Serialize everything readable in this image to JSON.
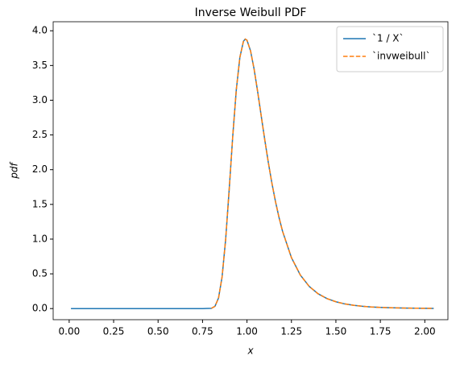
{
  "chart_data": {
    "type": "line",
    "title": "Inverse Weibull PDF",
    "xlabel": "x",
    "ylabel": "pdf",
    "x": [
      0.01,
      0.1,
      0.2,
      0.3,
      0.4,
      0.5,
      0.6,
      0.7,
      0.75,
      0.8,
      0.82,
      0.84,
      0.86,
      0.88,
      0.9,
      0.92,
      0.94,
      0.96,
      0.98,
      0.99,
      1.0,
      1.02,
      1.04,
      1.06,
      1.08,
      1.1,
      1.12,
      1.14,
      1.16,
      1.18,
      1.2,
      1.25,
      1.3,
      1.35,
      1.4,
      1.45,
      1.5,
      1.55,
      1.6,
      1.65,
      1.7,
      1.75,
      1.8,
      1.85,
      1.9,
      1.95,
      2.0,
      2.05
    ],
    "series": [
      {
        "name": "`1 / X`",
        "color": "#1f77b4",
        "dashed": false,
        "values": [
          0,
          0,
          0,
          0,
          0,
          0,
          0,
          0,
          0,
          0.004,
          0.033,
          0.152,
          0.456,
          0.995,
          1.716,
          2.485,
          3.153,
          3.618,
          3.848,
          3.88,
          3.863,
          3.711,
          3.449,
          3.123,
          2.775,
          2.43,
          2.104,
          1.807,
          1.544,
          1.313,
          1.113,
          0.733,
          0.482,
          0.319,
          0.213,
          0.144,
          0.098,
          0.067,
          0.047,
          0.033,
          0.023,
          0.017,
          0.012,
          0.009,
          0.007,
          0.005,
          0.004,
          0.003
        ]
      },
      {
        "name": "`invweibull`",
        "color": "#ff7f0e",
        "dashed": true,
        "values": [
          null,
          null,
          null,
          null,
          null,
          null,
          null,
          null,
          null,
          0.004,
          0.033,
          0.152,
          0.456,
          0.995,
          1.716,
          2.485,
          3.153,
          3.618,
          3.848,
          3.88,
          3.863,
          3.711,
          3.449,
          3.123,
          2.775,
          2.43,
          2.104,
          1.807,
          1.544,
          1.313,
          1.113,
          0.733,
          0.482,
          0.319,
          0.213,
          0.144,
          0.098,
          0.067,
          0.047,
          0.033,
          0.023,
          0.017,
          0.012,
          0.009,
          0.007,
          0.005,
          0.004,
          0.003
        ]
      }
    ],
    "xlim": [
      -0.09,
      2.13
    ],
    "ylim": [
      -0.16,
      4.13
    ],
    "xticks": [
      {
        "value": 0,
        "label": "0.00"
      },
      {
        "value": 0.25,
        "label": "0.25"
      },
      {
        "value": 0.5,
        "label": "0.50"
      },
      {
        "value": 0.75,
        "label": "0.75"
      },
      {
        "value": 1,
        "label": "1.00"
      },
      {
        "value": 1.25,
        "label": "1.25"
      },
      {
        "value": 1.5,
        "label": "1.50"
      },
      {
        "value": 1.75,
        "label": "1.75"
      },
      {
        "value": 2,
        "label": "2.00"
      }
    ],
    "yticks": [
      {
        "value": 0,
        "label": "0.0"
      },
      0.5,
      {
        "value": 1,
        "label": "1.0"
      },
      1.5,
      {
        "value": 2,
        "label": "2.0"
      },
      2.5,
      {
        "value": 3,
        "label": "3.0"
      },
      3.5,
      {
        "value": 4,
        "label": "4.0"
      }
    ],
    "legend": "upper right",
    "grid": false
  }
}
